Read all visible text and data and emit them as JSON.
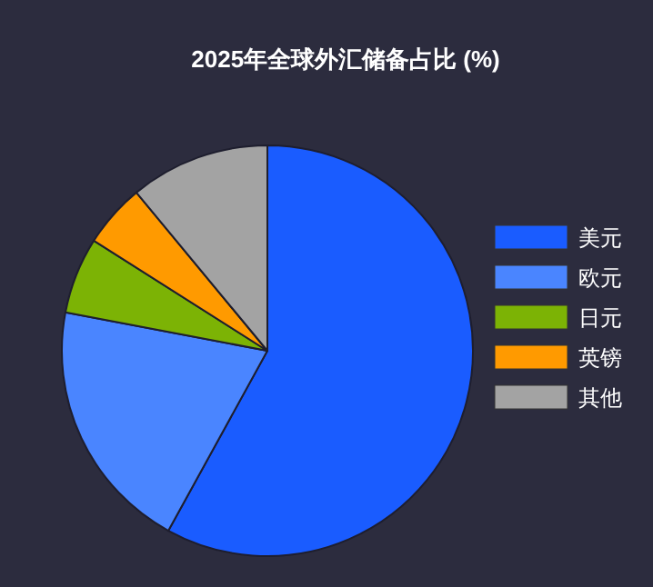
{
  "chart_data": {
    "type": "pie",
    "title": "2025年全球外汇储备占比 (%)",
    "categories": [
      "美元",
      "欧元",
      "日元",
      "英镑",
      "其他"
    ],
    "values": [
      58,
      20,
      6,
      5,
      11
    ],
    "colors": [
      "#1a5cff",
      "#4a85ff",
      "#7cb305",
      "#ff9a00",
      "#a3a3a3"
    ],
    "legend": "right"
  }
}
